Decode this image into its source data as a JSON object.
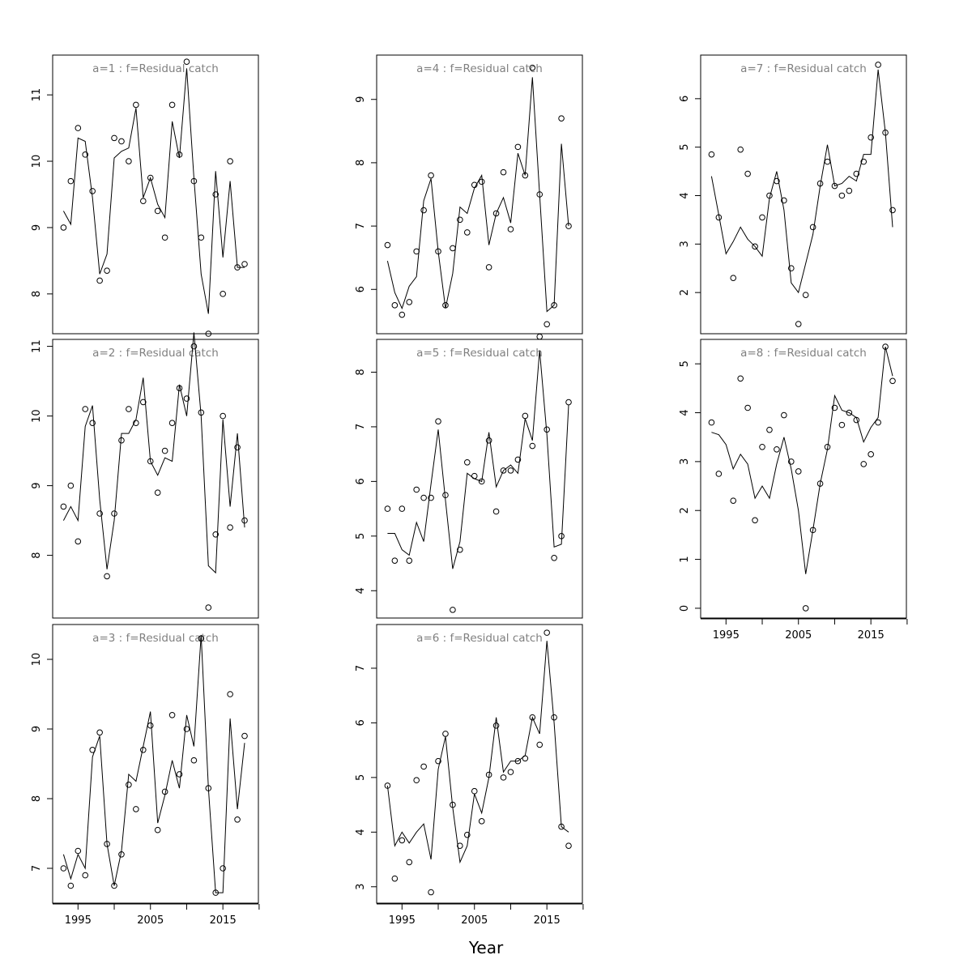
{
  "figure": {
    "xlabel": "Year"
  },
  "colors": {
    "title": "#808080",
    "line": "#000000",
    "frame": "#000000"
  },
  "chart_data": [
    {
      "type": "scatter",
      "title": "a=1  :  f=Residual catch",
      "ylim": [
        7.4,
        11.6
      ],
      "yticks": [
        8,
        9,
        10,
        11
      ],
      "xlim": [
        1991.5,
        2019.9
      ],
      "xticks": [
        1995,
        2005,
        2015
      ],
      "show_xaxis": false,
      "x": [
        1993,
        1994,
        1995,
        1996,
        1997,
        1998,
        1999,
        2000,
        2001,
        2002,
        2003,
        2004,
        2005,
        2006,
        2007,
        2008,
        2009,
        2010,
        2011,
        2012,
        2013,
        2014,
        2015,
        2016,
        2017,
        2018
      ],
      "observed": [
        9.0,
        9.7,
        10.5,
        10.1,
        9.55,
        8.2,
        8.35,
        10.35,
        10.3,
        10.0,
        10.85,
        9.4,
        9.75,
        9.25,
        8.85,
        10.85,
        10.1,
        11.5,
        9.7,
        8.85,
        7.4,
        9.5,
        8.0,
        10.0,
        8.4,
        8.45
      ],
      "fitted": [
        9.25,
        9.05,
        10.35,
        10.3,
        9.45,
        8.3,
        8.6,
        10.05,
        10.15,
        10.2,
        10.8,
        9.45,
        9.75,
        9.35,
        9.15,
        10.6,
        10.05,
        11.4,
        9.75,
        8.3,
        7.7,
        9.85,
        8.55,
        9.7,
        8.4,
        8.4
      ]
    },
    {
      "type": "scatter",
      "title": "a=2  :  f=Residual catch",
      "ylim": [
        7.1,
        11.1
      ],
      "yticks": [
        8,
        9,
        10,
        11
      ],
      "xlim": [
        1991.5,
        2019.9
      ],
      "xticks": [
        1995,
        2005,
        2015
      ],
      "show_xaxis": false,
      "x": [
        1993,
        1994,
        1995,
        1996,
        1997,
        1998,
        1999,
        2000,
        2001,
        2002,
        2003,
        2004,
        2005,
        2006,
        2007,
        2008,
        2009,
        2010,
        2011,
        2012,
        2013,
        2014,
        2015,
        2016,
        2017,
        2018
      ],
      "observed": [
        8.7,
        9.0,
        8.2,
        10.1,
        9.9,
        8.6,
        7.7,
        8.6,
        9.65,
        10.1,
        9.9,
        10.2,
        9.35,
        8.9,
        9.5,
        9.9,
        10.4,
        10.25,
        11.0,
        10.05,
        7.25,
        8.3,
        10.0,
        8.4,
        9.55,
        8.5
      ],
      "fitted": [
        8.5,
        8.7,
        8.5,
        9.85,
        10.15,
        8.8,
        7.8,
        8.5,
        9.75,
        9.75,
        9.95,
        10.55,
        9.35,
        9.15,
        9.4,
        9.35,
        10.45,
        10.0,
        11.2,
        10.0,
        7.85,
        7.75,
        9.95,
        8.7,
        9.75,
        8.4
      ]
    },
    {
      "type": "scatter",
      "title": "a=3  :  f=Residual catch",
      "ylim": [
        6.5,
        10.5
      ],
      "yticks": [
        7,
        8,
        9,
        10
      ],
      "xlim": [
        1991.5,
        2019.9
      ],
      "xticks": [
        1995,
        2005,
        2015
      ],
      "show_xaxis": true,
      "x": [
        1993,
        1994,
        1995,
        1996,
        1997,
        1998,
        1999,
        2000,
        2001,
        2002,
        2003,
        2004,
        2005,
        2006,
        2007,
        2008,
        2009,
        2010,
        2011,
        2012,
        2013,
        2014,
        2015,
        2016,
        2017,
        2018
      ],
      "observed": [
        7.0,
        6.75,
        7.25,
        6.9,
        8.7,
        8.95,
        7.35,
        6.75,
        7.2,
        8.2,
        7.85,
        8.7,
        9.05,
        7.55,
        8.1,
        9.2,
        8.35,
        9.0,
        8.55,
        10.3,
        8.15,
        6.65,
        7.0,
        9.5,
        7.7,
        8.9
      ],
      "fitted": [
        7.2,
        6.85,
        7.2,
        7.0,
        8.6,
        8.9,
        7.35,
        6.75,
        7.25,
        8.35,
        8.25,
        8.75,
        9.25,
        7.65,
        8.05,
        8.55,
        8.15,
        9.2,
        8.75,
        10.35,
        8.15,
        6.65,
        6.65,
        9.15,
        7.85,
        8.8
      ]
    },
    {
      "type": "scatter",
      "title": "a=4  :  f=Residual catch",
      "ylim": [
        5.3,
        9.7
      ],
      "yticks": [
        6,
        7,
        8,
        9
      ],
      "xlim": [
        1991.5,
        2019.9
      ],
      "xticks": [
        1995,
        2005,
        2015
      ],
      "show_xaxis": false,
      "x": [
        1993,
        1994,
        1995,
        1996,
        1997,
        1998,
        1999,
        2000,
        2001,
        2002,
        2003,
        2004,
        2005,
        2006,
        2007,
        2008,
        2009,
        2010,
        2011,
        2012,
        2013,
        2014,
        2015,
        2016,
        2017,
        2018
      ],
      "observed": [
        6.7,
        5.75,
        5.6,
        5.8,
        6.6,
        7.25,
        7.8,
        6.6,
        5.75,
        6.65,
        7.1,
        6.9,
        7.65,
        7.7,
        6.35,
        7.2,
        7.85,
        6.95,
        8.25,
        7.8,
        9.5,
        7.5,
        5.45,
        5.75,
        8.7,
        7.0
      ],
      "fitted": [
        6.45,
        5.95,
        5.7,
        6.05,
        6.2,
        7.4,
        7.75,
        6.6,
        5.7,
        6.25,
        7.3,
        7.2,
        7.6,
        7.8,
        6.7,
        7.2,
        7.45,
        7.05,
        8.15,
        7.8,
        9.35,
        7.5,
        5.65,
        5.75,
        8.3,
        7.0
      ]
    },
    {
      "type": "scatter",
      "title": "a=5  :  f=Residual catch",
      "ylim": [
        3.5,
        8.6
      ],
      "yticks": [
        4,
        5,
        6,
        7,
        8
      ],
      "xlim": [
        1991.5,
        2019.9
      ],
      "xticks": [
        1995,
        2005,
        2015
      ],
      "show_xaxis": false,
      "x": [
        1993,
        1994,
        1995,
        1996,
        1997,
        1998,
        1999,
        2000,
        2001,
        2002,
        2003,
        2004,
        2005,
        2006,
        2007,
        2008,
        2009,
        2010,
        2011,
        2012,
        2013,
        2014,
        2015,
        2016,
        2017,
        2018
      ],
      "observed": [
        5.5,
        4.55,
        5.5,
        4.55,
        5.85,
        5.7,
        5.7,
        7.1,
        5.75,
        3.65,
        4.75,
        6.35,
        6.1,
        6.0,
        6.75,
        5.45,
        6.2,
        6.2,
        6.4,
        7.2,
        6.65,
        8.65,
        6.95,
        4.6,
        5.0,
        7.45
      ],
      "fitted": [
        5.05,
        5.05,
        4.75,
        4.65,
        5.25,
        4.9,
        5.95,
        6.95,
        5.65,
        4.4,
        4.9,
        6.15,
        6.05,
        6.0,
        6.9,
        5.9,
        6.2,
        6.3,
        6.15,
        7.15,
        6.75,
        8.4,
        6.85,
        4.8,
        4.85,
        7.4
      ]
    },
    {
      "type": "scatter",
      "title": "a=6  :  f=Residual catch",
      "ylim": [
        2.7,
        7.8
      ],
      "yticks": [
        3,
        4,
        5,
        6,
        7
      ],
      "xlim": [
        1991.5,
        2019.9
      ],
      "xticks": [
        1995,
        2005,
        2015
      ],
      "show_xaxis": true,
      "x": [
        1993,
        1994,
        1995,
        1996,
        1997,
        1998,
        1999,
        2000,
        2001,
        2002,
        2003,
        2004,
        2005,
        2006,
        2007,
        2008,
        2009,
        2010,
        2011,
        2012,
        2013,
        2014,
        2015,
        2016,
        2017,
        2018
      ],
      "observed": [
        4.85,
        3.15,
        3.85,
        3.45,
        4.95,
        5.2,
        2.9,
        5.3,
        5.8,
        4.5,
        3.75,
        3.95,
        4.75,
        4.2,
        5.05,
        5.95,
        5.0,
        5.1,
        5.3,
        5.35,
        6.1,
        5.6,
        7.65,
        6.1,
        4.1,
        3.75
      ],
      "fitted": [
        4.85,
        3.75,
        4.0,
        3.8,
        4.0,
        4.15,
        3.5,
        5.15,
        5.75,
        4.45,
        3.45,
        3.75,
        4.7,
        4.35,
        5.0,
        6.1,
        5.1,
        5.3,
        5.3,
        5.4,
        6.1,
        5.8,
        7.5,
        6.0,
        4.1,
        4.0
      ]
    },
    {
      "type": "scatter",
      "title": "a=7  :  f=Residual catch",
      "ylim": [
        1.15,
        6.9
      ],
      "yticks": [
        2,
        3,
        4,
        5,
        6
      ],
      "xlim": [
        1991.5,
        2019.9
      ],
      "xticks": [
        1995,
        2005,
        2015
      ],
      "show_xaxis": false,
      "x": [
        1993,
        1994,
        1995,
        1996,
        1997,
        1998,
        1999,
        2000,
        2001,
        2002,
        2003,
        2004,
        2005,
        2006,
        2007,
        2008,
        2009,
        2010,
        2011,
        2012,
        2013,
        2014,
        2015,
        2016,
        2017,
        2018
      ],
      "observed": [
        4.85,
        3.55,
        null,
        2.3,
        4.95,
        4.45,
        2.95,
        3.55,
        4.0,
        4.3,
        3.9,
        2.5,
        1.35,
        1.95,
        3.35,
        4.25,
        4.7,
        4.2,
        4.0,
        4.1,
        4.45,
        4.7,
        5.2,
        6.7,
        5.3,
        3.7
      ],
      "fitted": [
        4.4,
        3.6,
        2.8,
        3.05,
        3.35,
        3.1,
        2.95,
        2.75,
        3.95,
        4.5,
        3.7,
        2.2,
        2.0,
        2.6,
        3.2,
        4.2,
        5.05,
        4.2,
        4.25,
        4.4,
        4.3,
        4.85,
        4.85,
        6.6,
        5.3,
        3.35
      ]
    },
    {
      "type": "scatter",
      "title": "a=8  :  f=Residual catch",
      "ylim": [
        -0.2,
        5.5
      ],
      "yticks": [
        0,
        1,
        2,
        3,
        4,
        5
      ],
      "xlim": [
        1991.5,
        2019.9
      ],
      "xticks": [
        1995,
        2005,
        2015
      ],
      "show_xaxis": true,
      "x": [
        1993,
        1994,
        1995,
        1996,
        1997,
        1998,
        1999,
        2000,
        2001,
        2002,
        2003,
        2004,
        2005,
        2006,
        2007,
        2008,
        2009,
        2010,
        2011,
        2012,
        2013,
        2014,
        2015,
        2016,
        2017,
        2018
      ],
      "observed": [
        3.8,
        2.75,
        null,
        2.2,
        4.7,
        4.1,
        1.8,
        3.3,
        3.65,
        3.25,
        3.95,
        3.0,
        2.8,
        0.0,
        1.6,
        2.55,
        3.3,
        4.1,
        3.75,
        4.0,
        3.85,
        2.95,
        3.15,
        3.8,
        5.35,
        4.65
      ],
      "fitted": [
        3.6,
        3.55,
        3.35,
        2.85,
        3.15,
        2.95,
        2.25,
        2.5,
        2.25,
        2.95,
        3.5,
        2.85,
        2.0,
        0.7,
        1.6,
        2.55,
        3.25,
        4.35,
        4.05,
        4.0,
        3.9,
        3.4,
        3.7,
        3.9,
        5.35,
        4.75
      ]
    }
  ]
}
